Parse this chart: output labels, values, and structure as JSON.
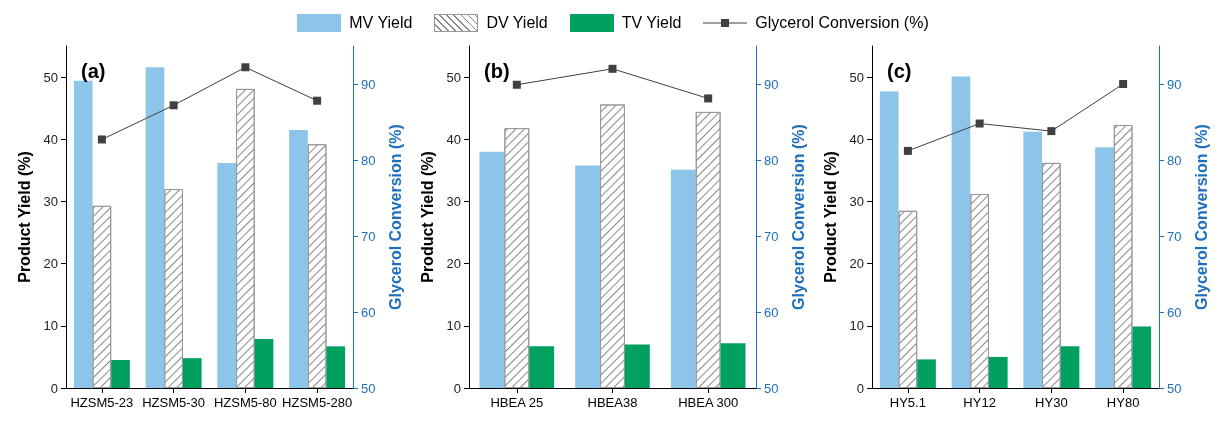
{
  "chart_data": [
    {
      "type": "bar",
      "title": "(a)",
      "ylabel": "Product Yield (%)",
      "y2label": "Glycerol Conversion (%)",
      "legend": "top",
      "categories": [
        "HZSM5-23",
        "HZSM5-30",
        "HZSM5-80",
        "HZSM5-280"
      ],
      "ylim": [
        0,
        55
      ],
      "yticks": [
        0,
        10,
        20,
        30,
        40,
        50
      ],
      "y2lim": [
        50,
        95
      ],
      "y2ticks": [
        50,
        60,
        70,
        80,
        90
      ],
      "series": [
        {
          "name": "MV Yield",
          "color": "#8cc4ea",
          "values": [
            49.4,
            51.6,
            36.2,
            41.5
          ]
        },
        {
          "name": "DV Yield",
          "color": "#ffffff",
          "values": [
            29.3,
            32.0,
            48.1,
            39.2
          ]
        },
        {
          "name": "TV Yield",
          "color": "#00a060",
          "values": [
            4.5,
            4.8,
            7.9,
            6.7
          ]
        },
        {
          "name": "Glycerol Conversion (%)",
          "type": "line",
          "axis": "y2",
          "marker": "square",
          "color": "#404040",
          "values": [
            82.7,
            87.2,
            92.2,
            87.8
          ]
        }
      ]
    },
    {
      "type": "bar",
      "title": "(b)",
      "ylabel": "Product Yield (%)",
      "y2label": "Glycerol Conversion (%)",
      "categories": [
        "HBEA 25",
        "HBEA38",
        "HBEA 300"
      ],
      "ylim": [
        0,
        55
      ],
      "yticks": [
        0,
        10,
        20,
        30,
        40,
        50
      ],
      "y2lim": [
        50,
        95
      ],
      "y2ticks": [
        50,
        60,
        70,
        80,
        90
      ],
      "series": [
        {
          "color": "#8cc4ea",
          "values": [
            38.0,
            35.8,
            35.1
          ]
        },
        {
          "color": "#ffffff",
          "values": [
            41.8,
            45.6,
            44.4
          ]
        },
        {
          "color": "#00a060",
          "values": [
            6.7,
            7.0,
            7.2
          ]
        },
        {
          "type": "line",
          "axis": "y2",
          "marker": "square",
          "color": "#404040",
          "values": [
            89.9,
            92.0,
            88.1
          ]
        }
      ]
    },
    {
      "type": "bar",
      "title": "(c)",
      "ylabel": "Product Yield (%)",
      "y2label": "Glycerol Conversion (%)",
      "categories": [
        "HY5.1",
        "HY12",
        "HY30",
        "HY80"
      ],
      "ylim": [
        0,
        55
      ],
      "yticks": [
        0,
        10,
        20,
        30,
        40,
        50
      ],
      "y2lim": [
        50,
        95
      ],
      "y2ticks": [
        50,
        60,
        70,
        80,
        90
      ],
      "series": [
        {
          "color": "#8cc4ea",
          "values": [
            47.7,
            50.1,
            41.2,
            38.7
          ]
        },
        {
          "color": "#ffffff",
          "values": [
            28.5,
            31.2,
            36.2,
            42.3
          ]
        },
        {
          "color": "#00a060",
          "values": [
            4.6,
            5.0,
            6.7,
            9.9
          ]
        },
        {
          "type": "line",
          "axis": "y2",
          "marker": "square",
          "color": "#404040",
          "values": [
            81.2,
            84.8,
            83.8,
            90.0
          ]
        }
      ]
    }
  ]
}
